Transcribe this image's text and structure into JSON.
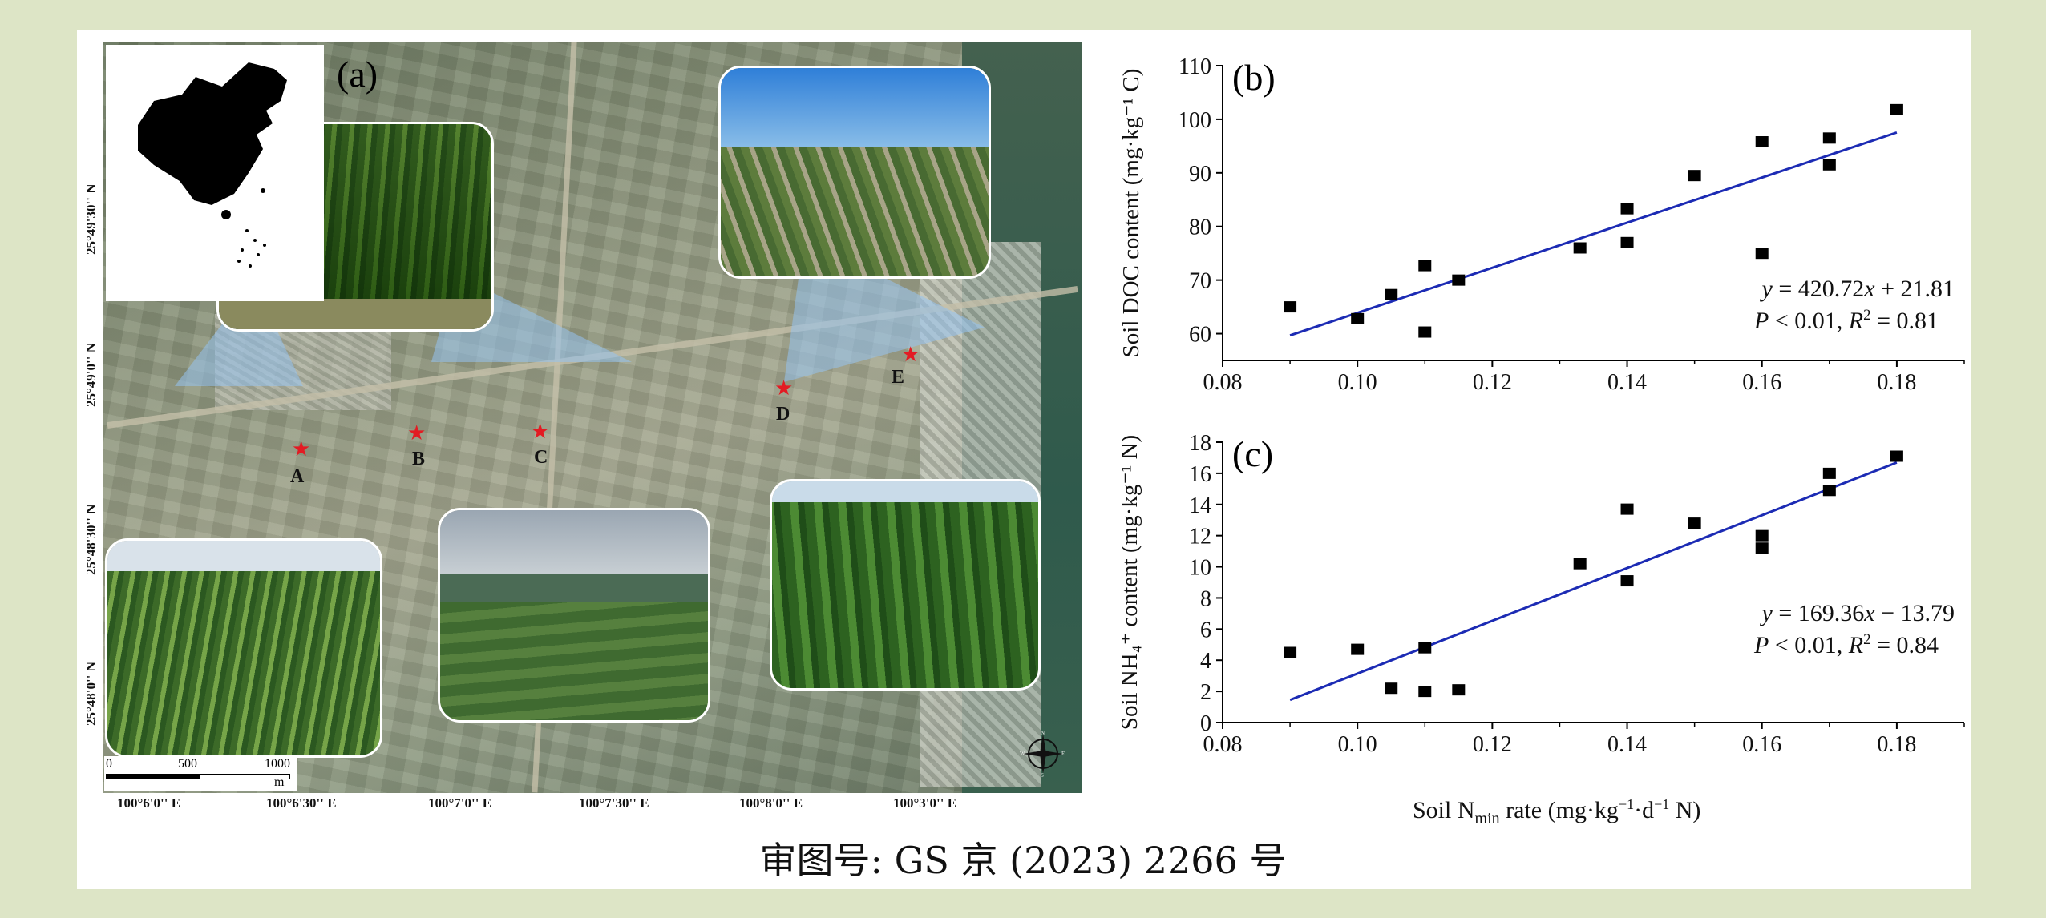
{
  "caption": "审图号: GS 京 (2023) 2266 号",
  "map": {
    "panel_label": "(a)",
    "sites": [
      "A",
      "B",
      "C",
      "D",
      "E"
    ],
    "latitudes": [
      "25°49'30'' N",
      "25°49'0'' N",
      "25°48'30'' N",
      "25°48'0'' N"
    ],
    "longitudes": [
      "100°6'0'' E",
      "100°6'30'' E",
      "100°7'0'' E",
      "100°7'30'' E",
      "100°8'0'' E",
      "100°3'0'' E"
    ],
    "scale": {
      "ticks": [
        "0",
        "500",
        "1000"
      ],
      "unit": "m"
    },
    "compass": {
      "N": "N",
      "S": "S",
      "E": "E",
      "W": "W"
    },
    "colors": {
      "star": "#e31b23",
      "view_cone": "#96c3f0"
    }
  },
  "x_axis_label": {
    "pre": "Soil N",
    "sub": "min",
    "post": " rate (mg·kg",
    "sup1": "−1",
    "mid": "·d",
    "sup2": "−1",
    "end": " N)"
  },
  "chart_data": [
    {
      "type": "scatter",
      "panel": "(b)",
      "ylabel": "Soil DOC content (mg·kg⁻¹ C)",
      "xlim": [
        0.08,
        0.19
      ],
      "ylim": [
        55,
        110
      ],
      "xticks": [
        "0.08",
        "0.10",
        "0.12",
        "0.14",
        "0.16",
        "0.18"
      ],
      "yticks": [
        "60",
        "70",
        "80",
        "90",
        "100",
        "110"
      ],
      "points": [
        [
          0.09,
          65
        ],
        [
          0.1,
          62.8
        ],
        [
          0.105,
          67.3
        ],
        [
          0.11,
          72.7
        ],
        [
          0.11,
          60.3
        ],
        [
          0.115,
          70
        ],
        [
          0.133,
          76
        ],
        [
          0.14,
          83.3
        ],
        [
          0.14,
          77
        ],
        [
          0.15,
          89.5
        ],
        [
          0.16,
          95.8
        ],
        [
          0.16,
          75
        ],
        [
          0.17,
          96.5
        ],
        [
          0.17,
          91.5
        ],
        [
          0.18,
          101.8
        ]
      ],
      "fit": {
        "slope": 420.72,
        "intercept": 21.81,
        "x_range": [
          0.09,
          0.18
        ]
      },
      "annotation": {
        "eq_y": "y",
        "eq_rest": " = 420.72",
        "eq_x": "x",
        "eq_tail": " + 21.81",
        "p": "P",
        "p_rest": " < 0.01, ",
        "r": "R",
        "r2": "2",
        "r_rest": " = 0.81"
      },
      "colors": {
        "point": "#000000",
        "line": "#1c2bb4"
      }
    },
    {
      "type": "scatter",
      "panel": "(c)",
      "ylabel": "Soil NH₄⁺ content (mg·kg⁻¹ N)",
      "xlim": [
        0.08,
        0.19
      ],
      "ylim": [
        0,
        18
      ],
      "xticks": [
        "0.08",
        "0.10",
        "0.12",
        "0.14",
        "0.16",
        "0.18"
      ],
      "yticks": [
        "0",
        "2",
        "4",
        "6",
        "8",
        "10",
        "12",
        "14",
        "16",
        "18"
      ],
      "points": [
        [
          0.09,
          4.5
        ],
        [
          0.1,
          4.7
        ],
        [
          0.105,
          2.2
        ],
        [
          0.11,
          4.8
        ],
        [
          0.11,
          2.0
        ],
        [
          0.115,
          2.1
        ],
        [
          0.133,
          10.2
        ],
        [
          0.14,
          13.7
        ],
        [
          0.14,
          9.1
        ],
        [
          0.15,
          12.8
        ],
        [
          0.16,
          12.0
        ],
        [
          0.16,
          11.2
        ],
        [
          0.17,
          16.0
        ],
        [
          0.17,
          14.9
        ],
        [
          0.18,
          17.1
        ]
      ],
      "fit": {
        "slope": 169.36,
        "intercept": -13.79,
        "x_range": [
          0.09,
          0.18
        ]
      },
      "annotation": {
        "eq_y": "y",
        "eq_rest": " = 169.36",
        "eq_x": "x",
        "eq_tail": " − 13.79",
        "p": "P",
        "p_rest": " < 0.01, ",
        "r": "R",
        "r2": "2",
        "r_rest": " = 0.84"
      },
      "colors": {
        "point": "#000000",
        "line": "#1c2bb4"
      }
    }
  ]
}
